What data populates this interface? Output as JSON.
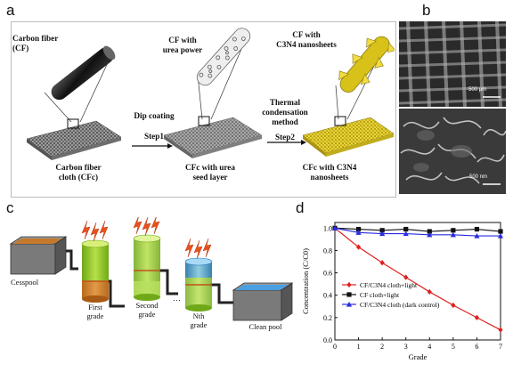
{
  "panel_a": {
    "letter": "a",
    "cf_label_1": "Carbon fiber",
    "cf_label_2": "(CF)",
    "urea_label_1": "CF with",
    "urea_label_2": "urea power",
    "c3n4_label_1": "CF with",
    "c3n4_label_2": "C3N4 nanosheets",
    "step1_label_1": "Dip coating",
    "step1_label_2": "Step1",
    "step2_label_1": "Thermal",
    "step2_label_2": "condensation",
    "step2_label_3": "method",
    "step2_label_4": "Step2",
    "cloth1_1": "Carbon fiber",
    "cloth1_2": "cloth (CFc)",
    "cloth2_1": "CFc with urea",
    "cloth2_2": "seed layer",
    "cloth3_1": "CFc with C3N4",
    "cloth3_2": "nanosheets",
    "colors": {
      "cloth": "#8a8a8a",
      "c3n4": "#d8c21a"
    }
  },
  "panel_b": {
    "letter": "b",
    "scale_top": "500 μm",
    "scale_bottom": "500 nm"
  },
  "panel_c": {
    "letter": "c",
    "cesspool": "Cesspool",
    "first_1": "First",
    "first_2": "grade",
    "second_1": "Second",
    "second_2": "grade",
    "nth_1": "Nth",
    "nth_2": "grade",
    "clean": "Clean pool",
    "colors": {
      "lightning": "#e8501c",
      "water_green": "#9fd235",
      "water_blue": "#4aa0e0",
      "sludge": "#c47a2a"
    }
  },
  "panel_d": {
    "letter": "d"
  },
  "chart_data": {
    "type": "line",
    "xlabel": "Grade",
    "ylabel": "Concentration (C/C0)",
    "xlim": [
      0,
      7
    ],
    "ylim": [
      0.0,
      1.05
    ],
    "x_ticks": [
      "0",
      "1",
      "2",
      "3",
      "4",
      "5",
      "6",
      "7"
    ],
    "y_ticks": [
      "0.0",
      "0.2",
      "0.4",
      "0.6",
      "0.8",
      "1.0"
    ],
    "legend_position": "center-left",
    "x": [
      0,
      1,
      2,
      3,
      4,
      5,
      6,
      7
    ],
    "series": [
      {
        "name": "CF/C3N4 cloth+light",
        "color": "#e02020",
        "marker": "diamond",
        "values": [
          1.0,
          0.83,
          0.69,
          0.56,
          0.43,
          0.31,
          0.2,
          0.09
        ]
      },
      {
        "name": "CF cloth+light",
        "color": "#111111",
        "marker": "square",
        "values": [
          1.0,
          0.99,
          0.98,
          0.99,
          0.97,
          0.98,
          0.99,
          0.97
        ]
      },
      {
        "name": "CF/C3N4 cloth (dark control)",
        "color": "#2a2ae0",
        "marker": "triangle",
        "values": [
          1.0,
          0.96,
          0.95,
          0.95,
          0.94,
          0.94,
          0.93,
          0.93
        ]
      }
    ]
  }
}
